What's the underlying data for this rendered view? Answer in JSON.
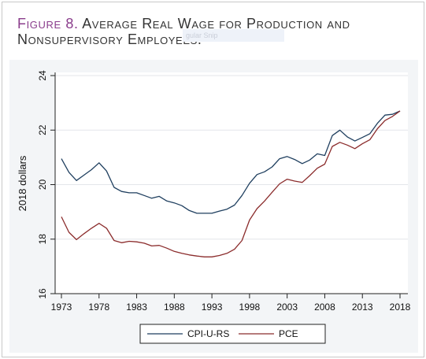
{
  "figure": {
    "number_label": "Figure 8.",
    "title_text": "Average Real Wage for Production and Nonsupervisory Employees.",
    "overlay_text": "gular Snip"
  },
  "chart_data": {
    "type": "line",
    "title": "Figure 8. Average Real Wage for Production and Nonsupervisory Employees.",
    "xlabel": "",
    "ylabel": "2018 dollars",
    "xlim": [
      1973,
      2018
    ],
    "ylim": [
      16,
      24
    ],
    "x_ticks": [
      1973,
      1978,
      1983,
      1988,
      1993,
      1998,
      2003,
      2008,
      2013,
      2018
    ],
    "y_ticks": [
      16,
      18,
      20,
      22,
      24
    ],
    "grid": true,
    "legend_position": "bottom",
    "x": [
      1973,
      1974,
      1975,
      1976,
      1977,
      1978,
      1979,
      1980,
      1981,
      1982,
      1983,
      1984,
      1985,
      1986,
      1987,
      1988,
      1989,
      1990,
      1991,
      1992,
      1993,
      1994,
      1995,
      1996,
      1997,
      1998,
      1999,
      2000,
      2001,
      2002,
      2003,
      2004,
      2005,
      2006,
      2007,
      2008,
      2009,
      2010,
      2011,
      2012,
      2013,
      2014,
      2015,
      2016,
      2017,
      2018
    ],
    "series": [
      {
        "name": "CPI-U-RS",
        "color": "#1f3f5f",
        "values": [
          20.95,
          20.45,
          20.15,
          20.35,
          20.55,
          20.8,
          20.5,
          19.9,
          19.75,
          19.7,
          19.7,
          19.6,
          19.5,
          19.57,
          19.4,
          19.33,
          19.23,
          19.05,
          18.95,
          18.95,
          18.95,
          19.03,
          19.1,
          19.25,
          19.6,
          20.05,
          20.37,
          20.47,
          20.65,
          20.95,
          21.03,
          20.92,
          20.77,
          20.9,
          21.13,
          21.07,
          21.8,
          22.0,
          21.75,
          21.6,
          21.73,
          21.87,
          22.25,
          22.55,
          22.58,
          22.7
        ]
      },
      {
        "name": "PCE",
        "color": "#8b2c2c",
        "values": [
          18.82,
          18.25,
          17.98,
          18.2,
          18.4,
          18.58,
          18.4,
          17.95,
          17.87,
          17.92,
          17.9,
          17.85,
          17.75,
          17.77,
          17.67,
          17.55,
          17.48,
          17.42,
          17.38,
          17.35,
          17.35,
          17.4,
          17.48,
          17.63,
          17.95,
          18.7,
          19.12,
          19.4,
          19.72,
          20.03,
          20.2,
          20.13,
          20.08,
          20.33,
          20.6,
          20.75,
          21.4,
          21.55,
          21.45,
          21.32,
          21.5,
          21.65,
          22.05,
          22.35,
          22.5,
          22.7
        ]
      }
    ]
  }
}
